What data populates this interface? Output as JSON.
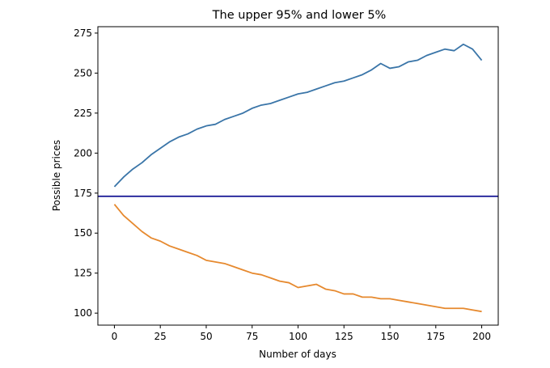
{
  "chart_data": {
    "type": "line",
    "title": "The upper 95% and lower 5%",
    "xlabel": "Number of days",
    "ylabel": "Possible prices",
    "xlim": [
      -9,
      209
    ],
    "ylim": [
      92.5,
      279
    ],
    "x_ticks": [
      0,
      25,
      50,
      75,
      100,
      125,
      150,
      175,
      200
    ],
    "y_ticks": [
      100,
      125,
      150,
      175,
      200,
      225,
      250,
      275
    ],
    "grid": false,
    "legend": "none",
    "hline": {
      "y": 173,
      "color": "#00008b"
    },
    "series": [
      {
        "color": "#3a75a8",
        "x": [
          0,
          5,
          10,
          15,
          20,
          25,
          30,
          35,
          40,
          45,
          50,
          55,
          60,
          65,
          70,
          75,
          80,
          85,
          90,
          95,
          100,
          105,
          110,
          115,
          120,
          125,
          130,
          135,
          140,
          145,
          150,
          155,
          160,
          165,
          170,
          175,
          180,
          185,
          190,
          195,
          200
        ],
        "y": [
          179,
          185,
          190,
          194,
          199,
          203,
          207,
          210,
          212,
          215,
          217,
          218,
          221,
          223,
          225,
          228,
          230,
          231,
          233,
          235,
          237,
          238,
          240,
          242,
          244,
          245,
          247,
          249,
          252,
          256,
          253,
          254,
          257,
          258,
          261,
          263,
          265,
          264,
          268,
          265,
          258
        ]
      },
      {
        "color": "#e6892e",
        "x": [
          0,
          5,
          10,
          15,
          20,
          25,
          30,
          35,
          40,
          45,
          50,
          55,
          60,
          65,
          70,
          75,
          80,
          85,
          90,
          95,
          100,
          105,
          110,
          115,
          120,
          125,
          130,
          135,
          140,
          145,
          150,
          155,
          160,
          165,
          170,
          175,
          180,
          185,
          190,
          195,
          200
        ],
        "y": [
          168,
          161,
          156,
          151,
          147,
          145,
          142,
          140,
          138,
          136,
          133,
          132,
          131,
          129,
          127,
          125,
          124,
          122,
          120,
          119,
          116,
          117,
          118,
          115,
          114,
          112,
          112,
          110,
          110,
          109,
          109,
          108,
          107,
          106,
          105,
          104,
          103,
          103,
          103,
          102,
          101
        ]
      }
    ]
  }
}
